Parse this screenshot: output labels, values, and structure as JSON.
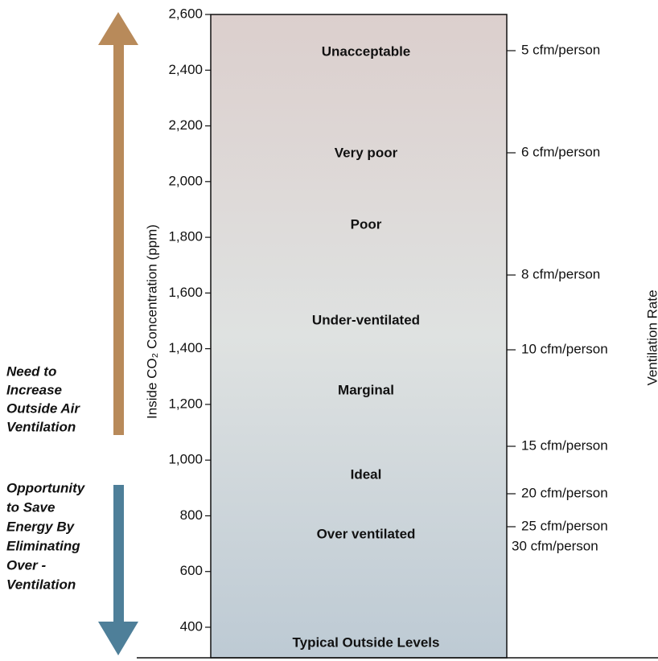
{
  "axis_label": "Inside CO₂ Concentration (ppm)",
  "right_label": "Ventilation Rate",
  "ylim": [
    400,
    2600
  ],
  "yticks": [
    {
      "value": 2600,
      "label": "2,600"
    },
    {
      "value": 2400,
      "label": "2,400"
    },
    {
      "value": 2200,
      "label": "2,200"
    },
    {
      "value": 2000,
      "label": "2,000"
    },
    {
      "value": 1800,
      "label": "1,800"
    },
    {
      "value": 1600,
      "label": "1,600"
    },
    {
      "value": 1400,
      "label": "1,400"
    },
    {
      "value": 1200,
      "label": "1,200"
    },
    {
      "value": 1000,
      "label": "1,000"
    },
    800,
    600,
    400
  ],
  "bands": [
    "Unacceptable",
    "Very poor",
    "Poor",
    "Under-ventilated",
    "Marginal",
    "Ideal",
    "Over ventilated",
    "Typical Outside Levels"
  ],
  "rates": [
    "5 cfm/person",
    "6 cfm/person",
    "8 cfm/person",
    "10 cfm/person",
    "15 cfm/person",
    "20 cfm/person",
    "25 cfm/person",
    "30 cfm/person"
  ],
  "increase_note": [
    "Need to",
    "Increase",
    "Outside Air",
    "Ventilation"
  ],
  "save_note": [
    "Opportunity",
    "to Save",
    "Energy By",
    "Eliminating",
    "Over -",
    "Ventilation"
  ]
}
